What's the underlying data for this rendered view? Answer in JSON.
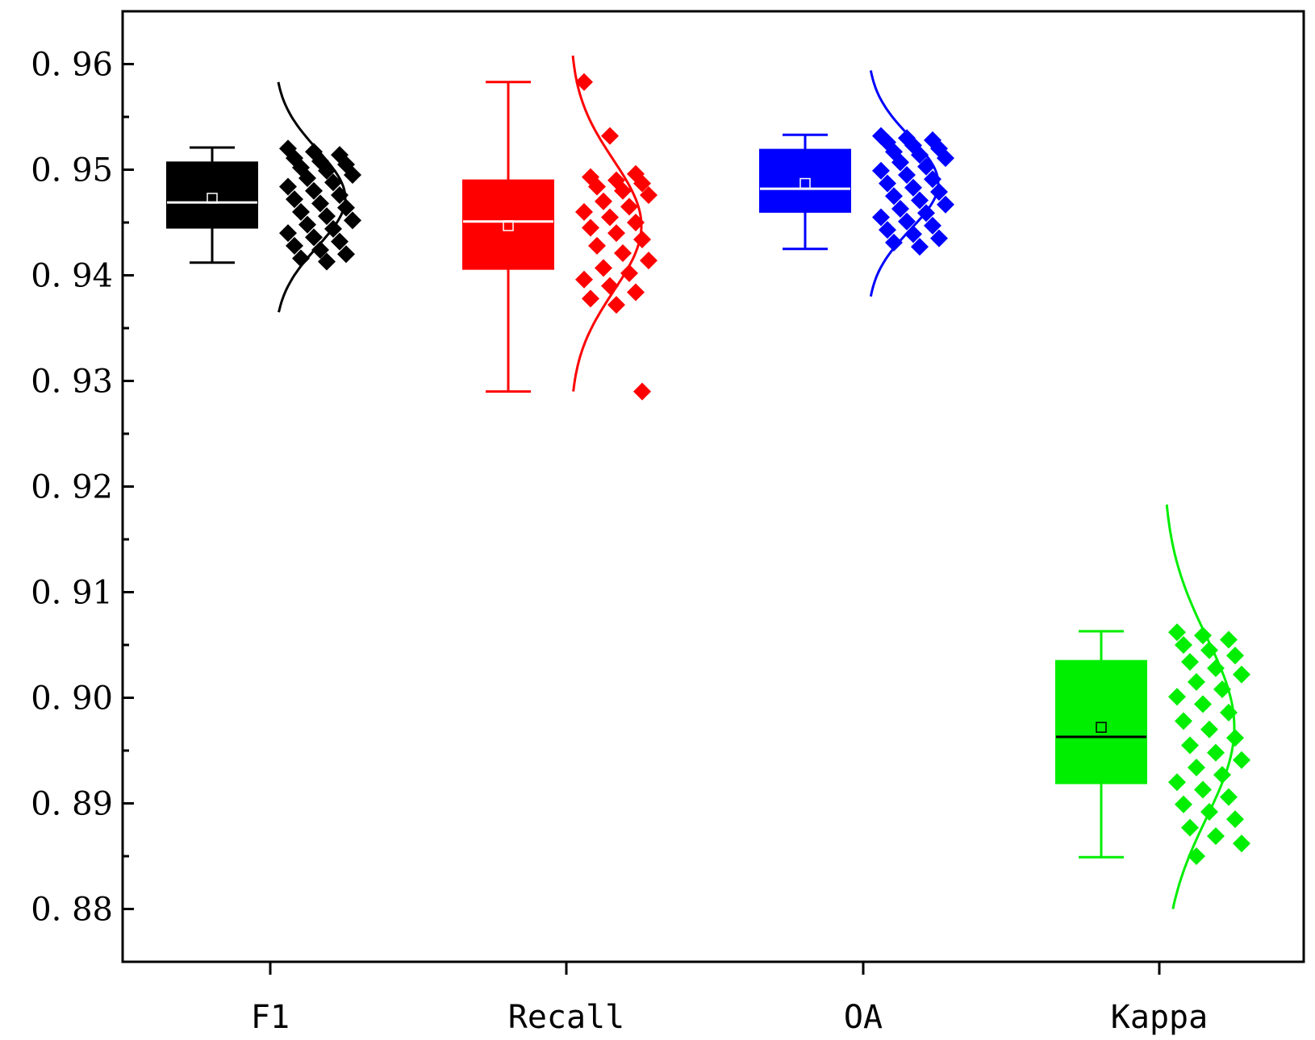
{
  "chart_data": {
    "type": "box",
    "title": "",
    "xlabel": "",
    "ylabel": "",
    "ylim": [
      0.875,
      0.965
    ],
    "yticks": [
      {
        "value": 0.88,
        "label": "0. 88"
      },
      {
        "value": 0.89,
        "label": "0. 89"
      },
      {
        "value": 0.9,
        "label": "0. 90"
      },
      {
        "value": 0.91,
        "label": "0. 91"
      },
      {
        "value": 0.92,
        "label": "0. 92"
      },
      {
        "value": 0.93,
        "label": "0. 93"
      },
      {
        "value": 0.94,
        "label": "0. 94"
      },
      {
        "value": 0.95,
        "label": "0. 95"
      },
      {
        "value": 0.96,
        "label": "0. 96"
      }
    ],
    "categories": [
      "F1",
      "Recall",
      "OA",
      "Kappa"
    ],
    "grid": false,
    "series": [
      {
        "category": "F1",
        "color": "#000000",
        "median_color": "#ffffff",
        "min": 0.9412,
        "q1": 0.9445,
        "median": 0.9469,
        "q3": 0.9507,
        "max": 0.9521,
        "mean": 0.9473,
        "curve_range": [
          0.9365,
          0.9583
        ],
        "points": [
          0.952,
          0.9517,
          0.9514,
          0.9511,
          0.9508,
          0.9505,
          0.9502,
          0.9499,
          0.9495,
          0.9492,
          0.9488,
          0.9484,
          0.948,
          0.9476,
          0.9472,
          0.9468,
          0.9464,
          0.946,
          0.9456,
          0.9452,
          0.9448,
          0.9444,
          0.944,
          0.9436,
          0.9432,
          0.9428,
          0.9424,
          0.942,
          0.9416,
          0.9413
        ]
      },
      {
        "category": "Recall",
        "color": "#ff0000",
        "median_color": "#ffffff",
        "min": 0.929,
        "q1": 0.9406,
        "median": 0.9451,
        "q3": 0.949,
        "max": 0.9583,
        "mean": 0.9447,
        "curve_range": [
          0.929,
          0.9608
        ],
        "points": [
          0.9583,
          0.9532,
          0.9496,
          0.9493,
          0.949,
          0.9487,
          0.9484,
          0.948,
          0.9476,
          0.947,
          0.9465,
          0.946,
          0.9455,
          0.945,
          0.9445,
          0.944,
          0.9434,
          0.9428,
          0.9421,
          0.9414,
          0.9407,
          0.9402,
          0.9396,
          0.939,
          0.9384,
          0.9378,
          0.9372,
          0.929
        ]
      },
      {
        "category": "OA",
        "color": "#0000ff",
        "median_color": "#ffffff",
        "min": 0.9425,
        "q1": 0.946,
        "median": 0.9482,
        "q3": 0.9519,
        "max": 0.9533,
        "mean": 0.9487,
        "curve_range": [
          0.938,
          0.9594
        ],
        "points": [
          0.9532,
          0.953,
          0.9528,
          0.9526,
          0.9523,
          0.952,
          0.9517,
          0.9514,
          0.9511,
          0.9507,
          0.9503,
          0.9499,
          0.9495,
          0.9491,
          0.9487,
          0.9483,
          0.9479,
          0.9475,
          0.9471,
          0.9467,
          0.9463,
          0.9459,
          0.9455,
          0.9451,
          0.9447,
          0.9443,
          0.9439,
          0.9435,
          0.9431,
          0.9427
        ]
      },
      {
        "category": "Kappa",
        "color": "#00ee00",
        "median_color": "#000000",
        "min": 0.8849,
        "q1": 0.8919,
        "median": 0.8963,
        "q3": 0.9035,
        "max": 0.9063,
        "mean": 0.8972,
        "curve_range": [
          0.88,
          0.9183
        ],
        "points": [
          0.9062,
          0.9059,
          0.9055,
          0.905,
          0.9045,
          0.904,
          0.9034,
          0.9028,
          0.9022,
          0.9015,
          0.9008,
          0.9001,
          0.8994,
          0.8986,
          0.8978,
          0.897,
          0.8962,
          0.8955,
          0.8948,
          0.8941,
          0.8934,
          0.8927,
          0.892,
          0.8913,
          0.8906,
          0.8899,
          0.8892,
          0.8885,
          0.8877,
          0.8869,
          0.8862,
          0.885
        ]
      }
    ]
  }
}
